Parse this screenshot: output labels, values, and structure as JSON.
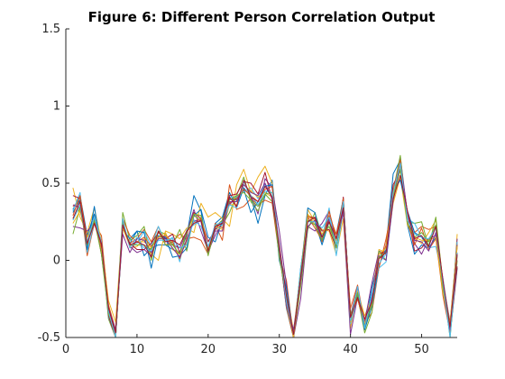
{
  "chart_data": {
    "type": "line",
    "title": "Figure 6: Different Person Correlation Output",
    "xlabel": "",
    "ylabel": "",
    "xlim": [
      0,
      55
    ],
    "ylim": [
      -0.5,
      1.5
    ],
    "grid": false,
    "xticks": [
      0,
      10,
      20,
      30,
      40,
      50
    ],
    "yticks": [
      -0.5,
      0,
      0.5,
      1,
      1.5
    ],
    "xtick_labels": [
      "0",
      "10",
      "20",
      "30",
      "40",
      "50"
    ],
    "ytick_labels": [
      "-0.5",
      "0",
      "0.5",
      "1",
      "1.5"
    ],
    "x": [
      1,
      2,
      3,
      4,
      5,
      6,
      7,
      8,
      9,
      10,
      11,
      12,
      13,
      14,
      15,
      16,
      17,
      18,
      19,
      20,
      21,
      22,
      23,
      24,
      25,
      26,
      27,
      28,
      29,
      30,
      31,
      32,
      33,
      34,
      35,
      36,
      37,
      38,
      39,
      40,
      41,
      42,
      43,
      44,
      45,
      46,
      47,
      48,
      49,
      50,
      51,
      52,
      53,
      54,
      55
    ],
    "colors": [
      "#0072BD",
      "#D95319",
      "#EDB120",
      "#7E2F8E",
      "#77AC30",
      "#4DBEEE",
      "#A2142F"
    ],
    "series": [
      {
        "values": [
          0.33,
          0.42,
          0.16,
          0.3,
          0.04,
          -0.31,
          -0.55,
          0.22,
          0.11,
          0.19,
          0.03,
          0.08,
          0.1,
          0.1,
          0.07,
          0.05,
          0.16,
          0.42,
          0.32,
          0.04,
          0.24,
          0.28,
          0.44,
          0.34,
          0.47,
          0.41,
          0.24,
          0.42,
          0.52,
          0.07,
          -0.31,
          -0.6,
          -0.05,
          0.26,
          0.25,
          0.1,
          0.25,
          0.17,
          0.4,
          -0.35,
          -0.24,
          -0.44,
          -0.18,
          0.01,
          0.09,
          0.56,
          0.65,
          0.23,
          0.04,
          0.1,
          0.08,
          0.15,
          -0.15,
          -0.48,
          -0.05
        ]
      },
      {
        "values": [
          0.35,
          0.39,
          0.03,
          0.24,
          0.16,
          -0.29,
          -0.45,
          0.22,
          0.11,
          0.14,
          0.2,
          0.12,
          0.22,
          0.1,
          0.12,
          0.17,
          0.14,
          0.15,
          0.13,
          0.04,
          0.23,
          0.13,
          0.49,
          0.33,
          0.35,
          0.4,
          0.36,
          0.39,
          0.37,
          0.03,
          -0.13,
          -0.51,
          -0.12,
          0.28,
          0.21,
          0.13,
          0.29,
          0.17,
          0.36,
          -0.31,
          -0.16,
          -0.41,
          -0.34,
          -0.05,
          0.14,
          0.38,
          0.62,
          0.31,
          0.18,
          0.22,
          0.2,
          0.22,
          -0.14,
          -0.4,
          0.11
        ]
      },
      {
        "values": [
          0.47,
          0.28,
          0.18,
          0.34,
          0.12,
          -0.26,
          -0.4,
          0.26,
          0.08,
          0.09,
          0.14,
          0.04,
          0.0,
          0.19,
          0.17,
          0.14,
          0.21,
          0.18,
          0.37,
          0.28,
          0.31,
          0.27,
          0.22,
          0.49,
          0.59,
          0.44,
          0.54,
          0.61,
          0.5,
          0.05,
          -0.19,
          -0.46,
          -0.07,
          0.33,
          0.25,
          0.2,
          0.19,
          0.04,
          0.27,
          -0.44,
          -0.2,
          -0.36,
          -0.24,
          0.07,
          0.05,
          0.37,
          0.54,
          0.23,
          0.14,
          0.11,
          0.18,
          0.26,
          -0.14,
          -0.48,
          0.17
        ]
      },
      {
        "values": [
          0.22,
          0.21,
          0.19,
          0.24,
          0.11,
          -0.36,
          -0.5,
          0.25,
          0.09,
          0.05,
          0.07,
          0.03,
          0.15,
          0.15,
          0.1,
          0.08,
          0.18,
          0.33,
          0.19,
          0.06,
          0.16,
          0.24,
          0.36,
          0.41,
          0.46,
          0.42,
          0.3,
          0.53,
          0.47,
          0.19,
          -0.16,
          -0.53,
          -0.25,
          0.22,
          0.19,
          0.24,
          0.32,
          0.1,
          0.31,
          -0.48,
          -0.24,
          -0.4,
          -0.15,
          0.06,
          0.04,
          0.4,
          0.67,
          0.3,
          0.11,
          0.04,
          0.14,
          0.16,
          -0.12,
          -0.46,
          0.14
        ]
      },
      {
        "values": [
          0.17,
          0.34,
          0.12,
          0.28,
          0.1,
          -0.38,
          -0.52,
          0.31,
          0.13,
          0.16,
          0.22,
          0.0,
          0.19,
          0.17,
          0.1,
          0.2,
          0.06,
          0.29,
          0.26,
          0.08,
          0.2,
          0.23,
          0.31,
          0.42,
          0.54,
          0.38,
          0.32,
          0.43,
          0.38,
          0.07,
          -0.3,
          -0.53,
          -0.17,
          0.2,
          0.31,
          0.16,
          0.22,
          0.1,
          0.36,
          -0.4,
          -0.23,
          -0.47,
          -0.34,
          0.06,
          0.0,
          0.45,
          0.68,
          0.25,
          0.24,
          0.25,
          0.09,
          0.28,
          -0.15,
          -0.51,
          -0.0
        ]
      },
      {
        "values": [
          0.32,
          0.44,
          0.05,
          0.25,
          0.11,
          -0.37,
          -0.48,
          0.22,
          0.09,
          0.11,
          0.19,
          0.09,
          0.22,
          0.12,
          0.15,
          -0.01,
          0.2,
          0.23,
          0.26,
          0.08,
          0.2,
          0.23,
          0.41,
          0.41,
          0.45,
          0.47,
          0.4,
          0.49,
          0.41,
          0.09,
          -0.2,
          -0.55,
          -0.05,
          0.28,
          0.27,
          0.15,
          0.34,
          0.03,
          0.33,
          -0.41,
          -0.24,
          -0.42,
          -0.3,
          -0.05,
          -0.01,
          0.39,
          0.62,
          0.27,
          0.24,
          0.15,
          0.08,
          0.09,
          -0.12,
          -0.42,
          0.12
        ]
      },
      {
        "values": [
          0.42,
          0.4,
          0.15,
          0.24,
          0.1,
          -0.36,
          -0.51,
          0.22,
          0.11,
          0.07,
          0.07,
          0.11,
          0.18,
          0.14,
          0.17,
          0.05,
          0.17,
          0.31,
          0.27,
          0.12,
          0.2,
          0.26,
          0.42,
          0.43,
          0.51,
          0.5,
          0.43,
          0.57,
          0.39,
          0.06,
          -0.25,
          -0.52,
          -0.1,
          0.29,
          0.27,
          0.19,
          0.2,
          0.08,
          0.41,
          -0.36,
          -0.17,
          -0.45,
          -0.24,
          0.04,
          0.06,
          0.49,
          0.58,
          0.31,
          0.06,
          0.08,
          0.14,
          0.21,
          -0.2,
          -0.47,
          -0.04
        ]
      },
      {
        "values": [
          0.31,
          0.39,
          0.07,
          0.35,
          0.06,
          -0.32,
          -0.53,
          0.2,
          0.14,
          0.19,
          0.18,
          -0.05,
          0.16,
          0.15,
          0.02,
          0.03,
          0.08,
          0.29,
          0.33,
          0.15,
          0.12,
          0.26,
          0.4,
          0.39,
          0.46,
          0.31,
          0.38,
          0.48,
          0.49,
          -0.0,
          -0.18,
          -0.55,
          -0.09,
          0.34,
          0.31,
          0.12,
          0.27,
          0.08,
          0.39,
          -0.4,
          -0.21,
          -0.45,
          -0.3,
          -0.03,
          0.07,
          0.45,
          0.52,
          0.32,
          0.18,
          0.15,
          0.09,
          0.22,
          -0.17,
          -0.46,
          0.1
        ]
      },
      {
        "values": [
          0.29,
          0.42,
          0.12,
          0.25,
          0.08,
          -0.29,
          -0.53,
          0.27,
          0.16,
          0.12,
          0.15,
          0.09,
          0.15,
          0.16,
          0.12,
          0.01,
          0.14,
          0.25,
          0.27,
          0.04,
          0.24,
          0.21,
          0.37,
          0.4,
          0.46,
          0.42,
          0.38,
          0.46,
          0.48,
          0.06,
          -0.3,
          -0.56,
          -0.12,
          0.28,
          0.27,
          0.12,
          0.32,
          0.14,
          0.4,
          -0.37,
          -0.25,
          -0.42,
          -0.23,
          -0.04,
          0.1,
          0.45,
          0.65,
          0.25,
          0.1,
          0.21,
          0.07,
          0.14,
          -0.23,
          -0.47,
          0.1
        ]
      },
      {
        "values": [
          0.24,
          0.32,
          0.15,
          0.26,
          0.06,
          -0.33,
          -0.54,
          0.21,
          0.09,
          0.12,
          0.12,
          0.08,
          0.15,
          0.18,
          0.07,
          0.04,
          0.11,
          0.3,
          0.29,
          0.07,
          0.22,
          0.2,
          0.36,
          0.36,
          0.49,
          0.45,
          0.41,
          0.44,
          0.41,
          0.05,
          -0.22,
          -0.54,
          -0.09,
          0.3,
          0.23,
          0.17,
          0.25,
          0.13,
          0.34,
          -0.4,
          -0.2,
          -0.41,
          -0.29,
          0.04,
          0.08,
          0.42,
          0.62,
          0.3,
          0.15,
          0.13,
          0.13,
          0.15,
          -0.21,
          -0.41,
          0.09
        ]
      },
      {
        "values": [
          0.36,
          0.34,
          0.1,
          0.28,
          0.04,
          -0.31,
          -0.45,
          0.17,
          0.05,
          0.14,
          0.13,
          0.05,
          0.14,
          0.14,
          0.08,
          0.02,
          0.13,
          0.26,
          0.25,
          0.04,
          0.19,
          0.19,
          0.38,
          0.38,
          0.49,
          0.44,
          0.42,
          0.5,
          0.4,
          0.07,
          -0.29,
          -0.45,
          -0.13,
          0.22,
          0.26,
          0.13,
          0.27,
          0.09,
          0.33,
          -0.39,
          -0.17,
          -0.43,
          -0.24,
          0.03,
          0.0,
          0.39,
          0.63,
          0.31,
          0.13,
          0.12,
          0.06,
          0.18,
          -0.14,
          -0.45,
          0.05
        ]
      },
      {
        "values": [
          0.27,
          0.35,
          0.1,
          0.26,
          0.04,
          -0.35,
          -0.47,
          0.25,
          0.1,
          0.1,
          0.1,
          0.07,
          0.19,
          0.1,
          0.1,
          0.04,
          0.18,
          0.3,
          0.29,
          0.03,
          0.22,
          0.26,
          0.39,
          0.42,
          0.44,
          0.39,
          0.35,
          0.43,
          0.44,
          0.02,
          -0.24,
          -0.48,
          -0.1,
          0.26,
          0.23,
          0.13,
          0.25,
          0.08,
          0.37,
          -0.36,
          -0.21,
          -0.43,
          -0.28,
          0.02,
          0.05,
          0.41,
          0.59,
          0.24,
          0.15,
          0.18,
          0.12,
          0.23,
          -0.18,
          -0.43,
          0.03
        ]
      },
      {
        "values": [
          0.26,
          0.36,
          0.12,
          0.28,
          0.12,
          -0.33,
          -0.5,
          0.27,
          0.08,
          0.15,
          0.08,
          0.06,
          0.13,
          0.13,
          0.14,
          0.08,
          0.1,
          0.26,
          0.22,
          0.09,
          0.23,
          0.25,
          0.36,
          0.34,
          0.51,
          0.42,
          0.36,
          0.45,
          0.44,
          0.11,
          -0.27,
          -0.48,
          -0.11,
          0.25,
          0.25,
          0.21,
          0.28,
          0.1,
          0.38,
          -0.39,
          -0.17,
          -0.44,
          -0.22,
          -0.02,
          0.04,
          0.44,
          0.63,
          0.26,
          0.17,
          0.15,
          0.14,
          0.21,
          -0.15,
          -0.5,
          0.05
        ]
      },
      {
        "values": [
          0.27,
          0.38,
          0.11,
          0.24,
          0.11,
          -0.31,
          -0.47,
          0.23,
          0.1,
          0.12,
          0.1,
          0.02,
          0.19,
          0.12,
          0.13,
          0.1,
          0.19,
          0.24,
          0.26,
          0.06,
          0.22,
          0.24,
          0.41,
          0.35,
          0.52,
          0.41,
          0.38,
          0.48,
          0.41,
          0.1,
          -0.23,
          -0.48,
          -0.11,
          0.25,
          0.28,
          0.15,
          0.25,
          0.14,
          0.34,
          -0.37,
          -0.24,
          -0.38,
          -0.27,
          0.01,
          0.05,
          0.4,
          0.55,
          0.32,
          0.14,
          0.16,
          0.09,
          0.22,
          -0.13,
          -0.43,
          0.04
        ]
      }
    ]
  }
}
